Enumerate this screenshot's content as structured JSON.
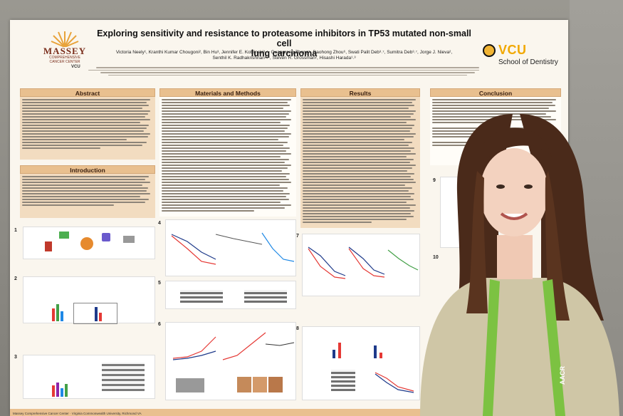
{
  "poster": {
    "title_line1": "Exploring sensitivity and resistance to proteasome inhibitors in TP53 mutated non-small cell",
    "title_line2": "lung carcinoma",
    "authors_line1": "Victoria Neely¹, Kranthi Kumar Chougoni², Bin Hu³, Jennifer E. Koblinski³˒⁴, Guangrong Zheng⁵, Daohong Zhou⁶, Swati Palit Deb³˒⁷, Sumitra Deb³˒⁷, Jorge J. Nieva²,",
    "authors_line2": "Senthil K. Radhakrishnan³˒⁴, Steven R. Grossman², Hisashi Harada¹˒³",
    "sections": {
      "abstract": "Abstract",
      "introduction": "Introduction",
      "methods": "Materials and Methods",
      "results": "Results",
      "conclusion": "Conclusion"
    },
    "logos": {
      "massey_name": "MASSEY",
      "massey_sub1": "COMPREHENSIVE",
      "massey_sub2": "CANCER CENTER",
      "massey_vcu": "VCU",
      "vcu_name": "VCU",
      "vcu_school": "School of Dentistry"
    },
    "lanyard": "AACR",
    "figure_labels": [
      "1",
      "2",
      "3",
      "4",
      "5",
      "6",
      "7",
      "8",
      "9",
      "10"
    ],
    "footer": "Massey Comprehensive Cancer Center · Virginia Commonwealth University, Richmond VA"
  },
  "colors": {
    "header_band": "#e9c08f",
    "vcu_gold": "#f1b434",
    "sweater": "#cfc6a6",
    "lanyard": "#7cc242"
  }
}
